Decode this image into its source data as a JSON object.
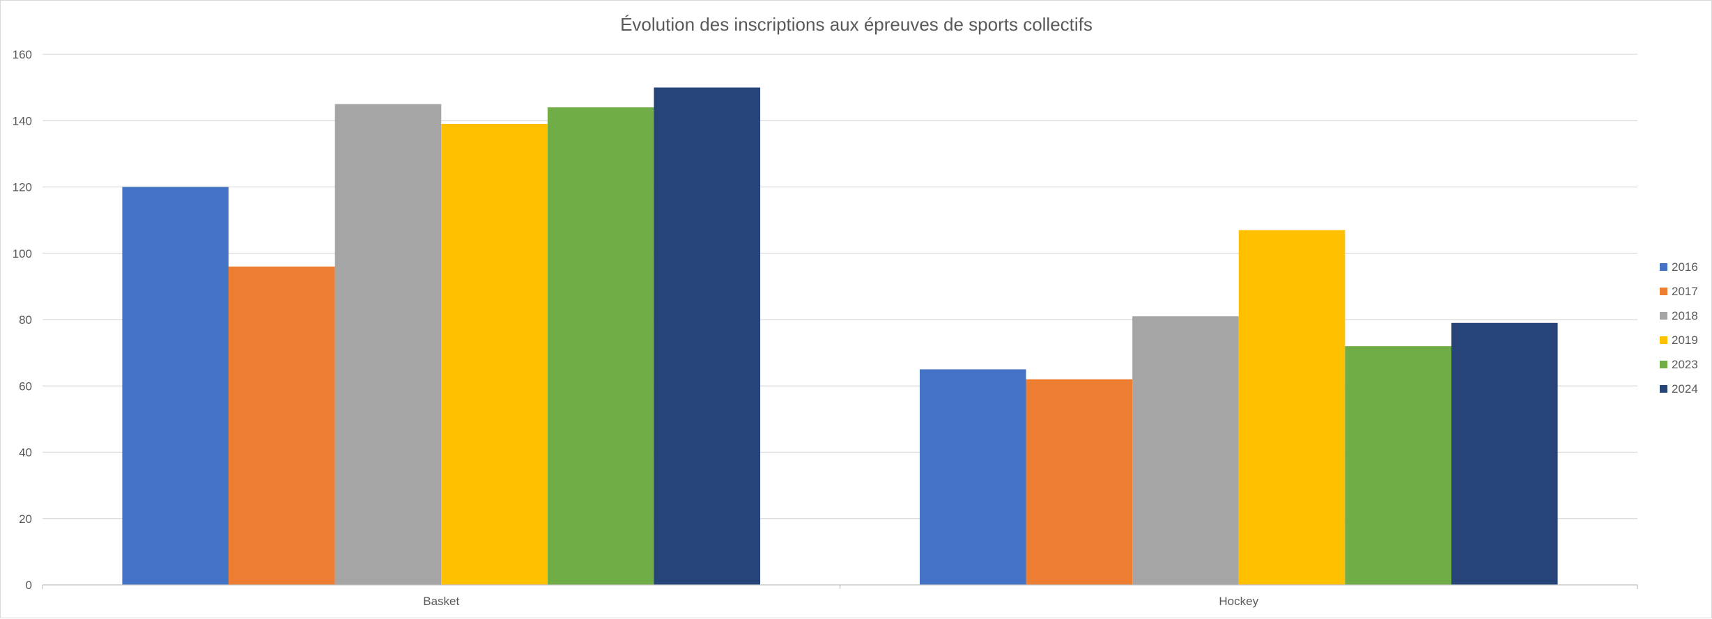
{
  "chart_data": {
    "type": "bar",
    "title": "Évolution des inscriptions aux épreuves de sports collectifs",
    "xlabel": "",
    "ylabel": "",
    "categories": [
      "Basket",
      "Hockey"
    ],
    "ylim": [
      0,
      160
    ],
    "yticks": [
      0,
      20,
      40,
      60,
      80,
      100,
      120,
      140,
      160
    ],
    "grid": true,
    "legend_position": "right",
    "series": [
      {
        "name": "2016",
        "color": "#4472C4",
        "values": [
          120,
          65
        ]
      },
      {
        "name": "2017",
        "color": "#ED7D31",
        "values": [
          96,
          62
        ]
      },
      {
        "name": "2018",
        "color": "#A5A5A5",
        "values": [
          145,
          81
        ]
      },
      {
        "name": "2019",
        "color": "#FFC000",
        "values": [
          139,
          107
        ]
      },
      {
        "name": "2023",
        "color": "#70AD47",
        "values": [
          144,
          72
        ]
      },
      {
        "name": "2024",
        "color": "#264478",
        "values": [
          150,
          79
        ]
      }
    ]
  }
}
